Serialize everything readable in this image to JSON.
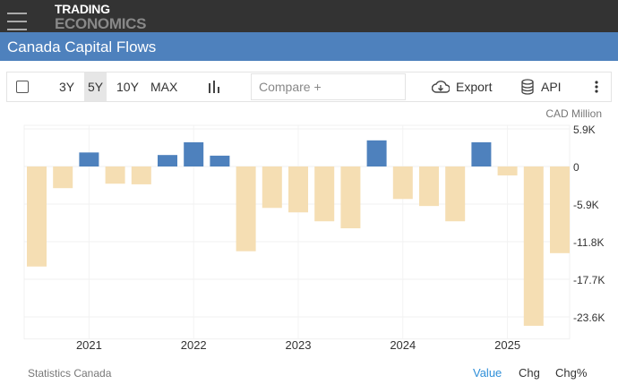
{
  "header": {
    "logo_line1": "TRADING",
    "logo_line2": "ECONOMICS",
    "title": "Canada Capital Flows"
  },
  "toolbar": {
    "ranges": [
      "3Y",
      "5Y",
      "10Y",
      "MAX"
    ],
    "active_range": "5Y",
    "compare_placeholder": "Compare +",
    "export_label": "Export",
    "api_label": "API"
  },
  "footer": {
    "source": "Statistics Canada",
    "tabs": [
      "Value",
      "Chg",
      "Chg%"
    ],
    "active_tab": "Value"
  },
  "colors": {
    "positive": "#4e81bd",
    "negative": "#f5deb3",
    "accent": "#2f8fd8"
  },
  "chart_data": {
    "type": "bar",
    "unit": "CAD Million",
    "categories": [
      "2020 Q3",
      "2020 Q4",
      "2021 Q1",
      "2021 Q2",
      "2021 Q3",
      "2021 Q4",
      "2022 Q1",
      "2022 Q2",
      "2022 Q3",
      "2022 Q4",
      "2023 Q1",
      "2023 Q2",
      "2023 Q3",
      "2023 Q4",
      "2024 Q1",
      "2024 Q2",
      "2024 Q3",
      "2024 Q4",
      "2025 Q1",
      "2025 Q2",
      "2025 Q3"
    ],
    "values": [
      -15700,
      -3400,
      2200,
      -2700,
      -2800,
      1800,
      3800,
      1700,
      -13300,
      -6500,
      -7200,
      -8600,
      -9700,
      4100,
      -5100,
      -6200,
      -8600,
      3800,
      -1400,
      -25000,
      -13600
    ],
    "x_tick_labels": [
      "2021",
      "2022",
      "2023",
      "2024",
      "2025"
    ],
    "y_tick_labels": [
      "5.9K",
      "0",
      "-5.9K",
      "-11.8K",
      "-17.7K",
      "-23.6K"
    ],
    "y_ticks": [
      5900,
      0,
      -5900,
      -11800,
      -17700,
      -23600
    ],
    "ylim": [
      -26500,
      5900
    ],
    "grid": true,
    "legend": "none"
  }
}
